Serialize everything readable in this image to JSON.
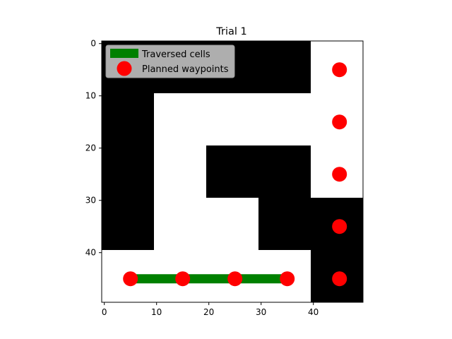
{
  "chart_data": {
    "type": "heatmap",
    "title": "Trial 1",
    "xlabel": "",
    "ylabel": "",
    "grid_size": [
      50,
      50
    ],
    "xlim": [
      -0.5,
      49.5
    ],
    "ylim": [
      49.5,
      -0.5
    ],
    "x_ticks": [
      0,
      10,
      20,
      30,
      40
    ],
    "y_ticks": [
      0,
      10,
      20,
      30,
      40
    ],
    "grid": false,
    "colormap": {
      "free": "#ffffff",
      "obstacle": "#000000"
    },
    "obstacles": [
      {
        "rows": [
          0,
          9
        ],
        "cols": [
          0,
          39
        ]
      },
      {
        "rows": [
          10,
          39
        ],
        "cols": [
          0,
          9
        ]
      },
      {
        "rows": [
          20,
          29
        ],
        "cols": [
          20,
          39
        ]
      },
      {
        "rows": [
          30,
          39
        ],
        "cols": [
          30,
          39
        ]
      },
      {
        "rows": [
          30,
          49
        ],
        "cols": [
          40,
          49
        ]
      }
    ],
    "series": [
      {
        "name": "Traversed cells",
        "type": "line",
        "color": "#008000",
        "x": [
          5,
          35
        ],
        "y": [
          45,
          45
        ]
      },
      {
        "name": "Planned waypoints",
        "type": "scatter",
        "color": "#ff0000",
        "x": [
          5,
          15,
          25,
          35,
          45,
          45,
          45,
          45,
          45
        ],
        "y": [
          45,
          45,
          45,
          45,
          45,
          35,
          25,
          15,
          5
        ]
      }
    ],
    "legend": {
      "position": "top-left",
      "entries": [
        "Traversed cells",
        "Planned waypoints"
      ]
    }
  }
}
